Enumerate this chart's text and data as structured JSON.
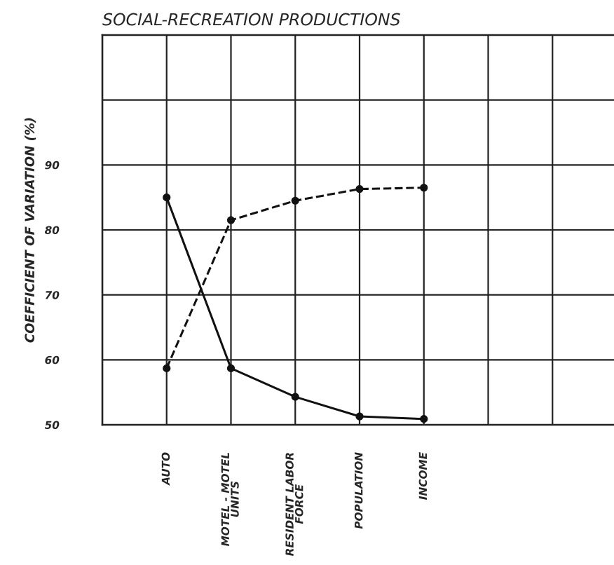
{
  "chart_data": {
    "type": "line",
    "title": "SOCIAL-RECREATION PRODUCTIONS",
    "ylabel": "COEFFICIENT OF VARIATION (%)",
    "categories": [
      null,
      "AUTO",
      "MOTEL - MOTEL\nUNITS",
      "RESIDENT LABOR\nFORCE",
      "POPULATION",
      "INCOME",
      null,
      null,
      null
    ],
    "ylim": [
      50,
      110
    ],
    "yticks": [
      50,
      60,
      70,
      80,
      90,
      {
        "value": 100,
        "label": null
      }
    ],
    "grid": true,
    "marker": "circle",
    "series": [
      {
        "color": "#111111",
        "line_style": "solid",
        "values": [
          null,
          85,
          58.7,
          54.3,
          51.3,
          50.9,
          null,
          null,
          null
        ]
      },
      {
        "color": "#111111",
        "line_style": "dashed",
        "values": [
          null,
          58.7,
          81.5,
          84.5,
          86.3,
          86.5,
          null,
          null,
          null
        ]
      }
    ]
  }
}
